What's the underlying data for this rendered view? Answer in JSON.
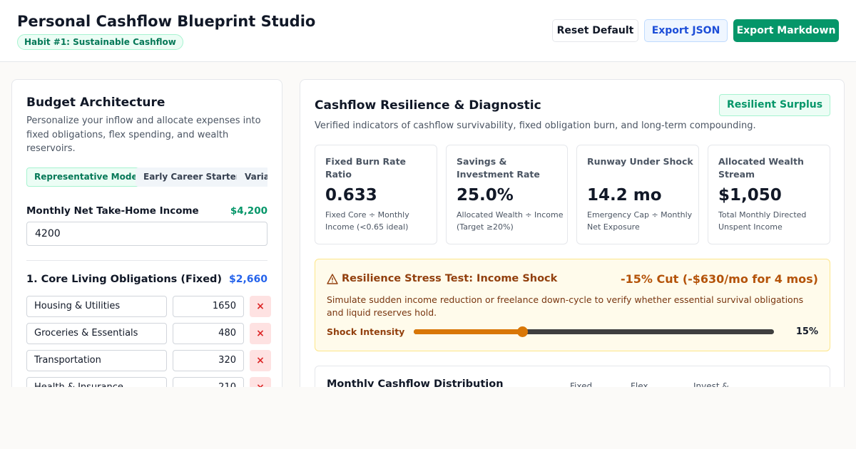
{
  "header": {
    "title": "Personal Cashflow Blueprint Studio",
    "badge": "Habit #1: Sustainable Cashflow",
    "buttons": {
      "reset": "Reset Default",
      "export_json": "Export JSON",
      "export_markdown": "Export Markdown"
    }
  },
  "budget": {
    "title": "Budget Architecture",
    "description": "Personalize your inflow and allocate expenses into fixed obligations, flex spending, and wealth reservoirs.",
    "presets": [
      "Representative Model",
      "Early Career Starter",
      "Variable Income"
    ],
    "active_preset": "Representative Model",
    "income_label": "Monthly Net Take-Home Income",
    "income_display": "$4,200",
    "income_value": "4200",
    "core": {
      "title": "1. Core Living Obligations (Fixed)",
      "total": "$2,660",
      "items": [
        {
          "name": "Housing & Utilities",
          "amount": "1650"
        },
        {
          "name": "Groceries & Essentials",
          "amount": "480"
        },
        {
          "name": "Transportation",
          "amount": "320"
        },
        {
          "name": "Health & Insurance",
          "amount": "210"
        }
      ],
      "remove_glyph": "×"
    }
  },
  "diagnostic": {
    "title": "Cashflow Resilience & Diagnostic",
    "status": "Resilient Surplus",
    "description": "Verified indicators of cashflow survivability, fixed obligation burn, and long-term compounding.",
    "metrics": [
      {
        "label": "Fixed Burn Rate Ratio",
        "value": "0.633",
        "note": "Fixed Core ÷ Monthly Income (<0.65 ideal)"
      },
      {
        "label": "Savings & Investment Rate",
        "value": "25.0%",
        "note": "Allocated Wealth ÷ Income (Target ≥20%)"
      },
      {
        "label": "Runway Under Shock",
        "value": "14.2 mo",
        "note": "Emergency Cap ÷ Monthly Net Exposure"
      },
      {
        "label": "Allocated Wealth Stream",
        "value": "$1,050",
        "note": "Total Monthly Directed Unspent Income"
      }
    ],
    "stress_test": {
      "title": "Resilience Stress Test: Income Shock",
      "cut": "-15% Cut (-$630/mo for 4 mos)",
      "description": "Simulate sudden income reduction or freelance down-cycle to verify whether essential survival obligations and liquid reserves hold.",
      "slider_label": "Shock Intensity",
      "slider_percent": 15,
      "slider_fraction": 0.3,
      "value_display": "15%",
      "accent": "#d97706"
    },
    "distribution": {
      "title": "Monthly Cashflow Distribution",
      "legend": [
        "Fixed",
        "Flex",
        "Invest &"
      ]
    }
  },
  "colors": {
    "brand_green": "#059669",
    "blue": "#2563eb",
    "danger": "#dc2626"
  }
}
